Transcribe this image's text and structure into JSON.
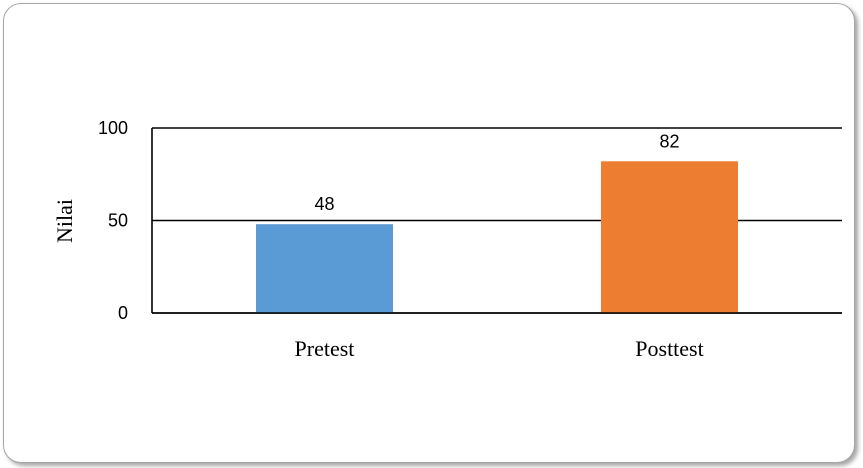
{
  "chart_data": {
    "type": "bar",
    "categories": [
      "Pretest",
      "Posttest"
    ],
    "values": [
      48,
      82
    ],
    "data_labels": [
      "48",
      "82"
    ],
    "title": "",
    "xlabel": "",
    "ylabel": "Nilai",
    "ylim": [
      0,
      100
    ],
    "yticks": [
      "0",
      "50",
      "100"
    ],
    "grid": true,
    "legend": "none",
    "colors": [
      "#5b9bd5",
      "#ed7d31"
    ]
  }
}
